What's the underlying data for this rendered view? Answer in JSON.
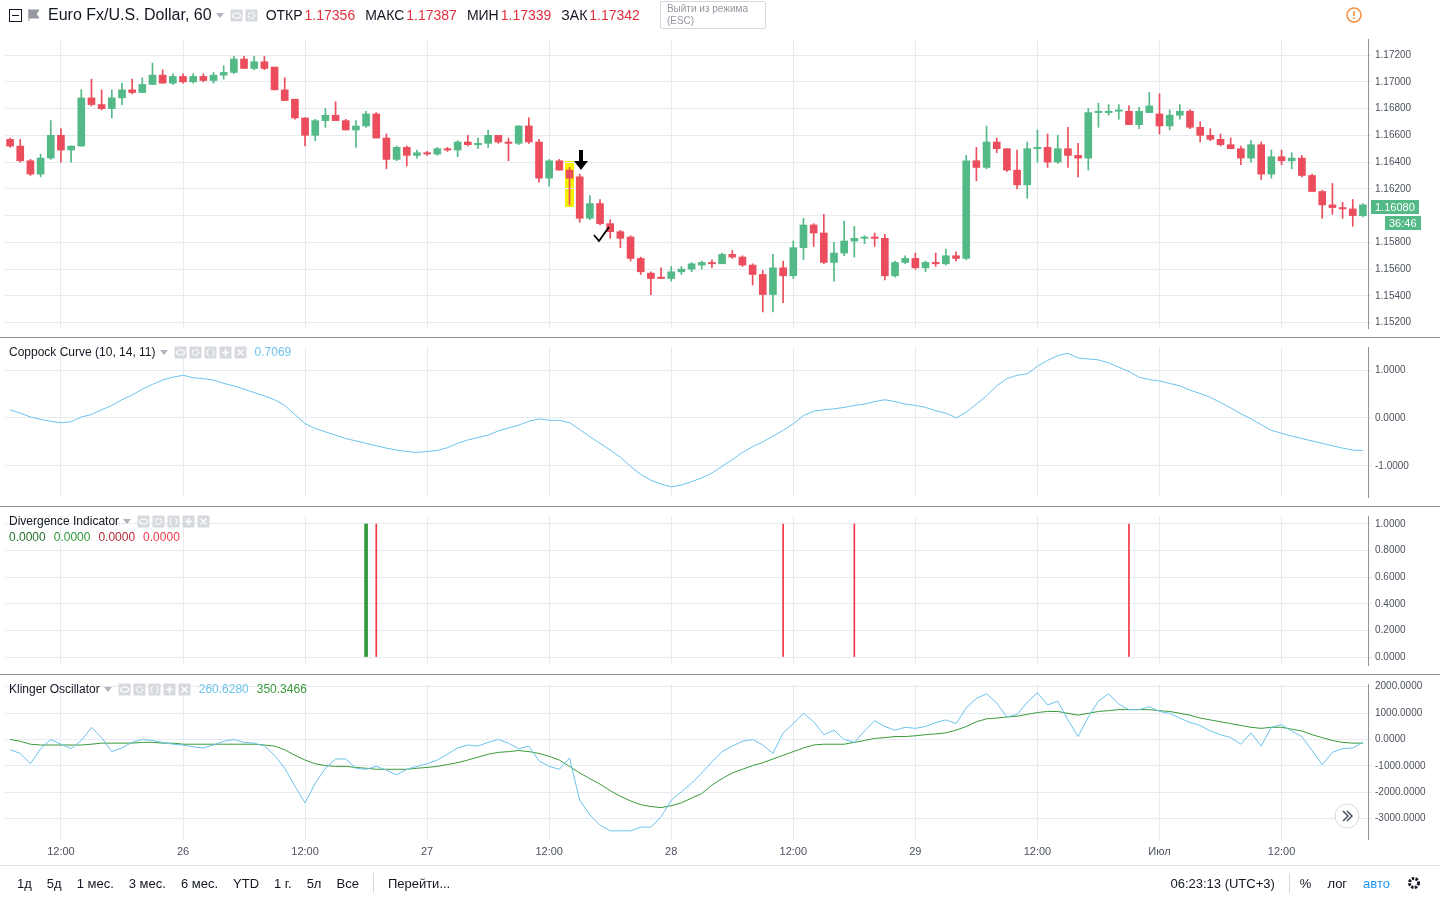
{
  "chart_data": [
    {
      "type": "candlestick",
      "title": "Euro Fx/U.S. Dollar, 60",
      "annotations": [
        "ОТКР",
        "1.17356",
        "МАКС",
        "1.17387",
        "МИН",
        "1.17339",
        "ЗАК",
        "1.17342",
        "Выйти из режима (ESC)",
        "1.16080",
        "36:46"
      ],
      "categories": [
        null,
        null,
        null,
        null,
        null,
        null,
        null,
        null,
        null,
        null,
        null,
        null,
        null,
        null,
        null,
        null,
        null,
        null,
        null,
        null,
        null,
        null,
        null,
        null,
        null,
        null,
        null,
        null,
        null,
        null,
        null,
        null,
        null,
        null,
        null,
        null,
        null,
        null,
        null,
        null,
        null,
        null,
        null,
        null,
        null,
        null,
        null,
        null,
        null,
        null,
        null,
        null,
        null,
        null,
        null,
        null,
        null,
        null,
        null,
        null,
        null,
        null,
        null,
        null,
        null,
        null,
        null,
        null,
        null,
        null,
        null,
        null,
        null,
        null,
        null,
        null,
        null,
        null,
        null,
        null,
        null,
        null,
        null,
        null,
        null,
        null,
        null,
        null,
        null,
        null,
        null,
        null,
        null,
        null,
        null,
        null,
        null,
        null,
        null,
        null,
        null,
        null,
        null,
        null,
        null,
        null,
        null,
        null,
        null,
        null,
        null,
        null,
        null,
        null,
        null,
        null,
        null,
        null,
        null,
        null,
        null,
        null,
        null,
        null,
        null,
        null,
        null,
        null,
        null,
        null,
        null,
        null,
        null,
        null
      ],
      "ohlc": [
        [
          1.1657,
          1.1658,
          1.1651,
          1.1652
        ],
        [
          1.1652,
          1.1657,
          1.164,
          1.1641
        ],
        [
          1.1641,
          1.1642,
          1.163,
          1.1631
        ],
        [
          1.1631,
          1.1646,
          1.1629,
          1.1643
        ],
        [
          1.1643,
          1.1671,
          1.1642,
          1.166
        ],
        [
          1.166,
          1.1665,
          1.164,
          1.1649
        ],
        [
          1.1649,
          1.1652,
          1.164,
          1.1652
        ],
        [
          1.1652,
          1.1694,
          1.1652,
          1.1688
        ],
        [
          1.1688,
          1.1702,
          1.1682,
          1.1683
        ],
        [
          1.1683,
          1.1694,
          1.1679,
          1.168
        ],
        [
          1.168,
          1.1694,
          1.1673,
          1.1688
        ],
        [
          1.1688,
          1.1699,
          1.1683,
          1.1694
        ],
        [
          1.1694,
          1.1702,
          1.1691,
          1.1692
        ],
        [
          1.1692,
          1.1703,
          1.1692,
          1.1698
        ],
        [
          1.1698,
          1.1714,
          1.1698,
          1.1705
        ],
        [
          1.1705,
          1.1709,
          1.1699,
          1.1699
        ],
        [
          1.1699,
          1.1706,
          1.1698,
          1.1704
        ],
        [
          1.1704,
          1.1706,
          1.1699,
          1.17
        ],
        [
          1.17,
          1.1706,
          1.1699,
          1.1704
        ],
        [
          1.1704,
          1.1706,
          1.17,
          1.1701
        ],
        [
          1.1701,
          1.1707,
          1.1699,
          1.1705
        ],
        [
          1.1705,
          1.1712,
          1.1702,
          1.1707
        ],
        [
          1.1707,
          1.1719,
          1.1706,
          1.1717
        ],
        [
          1.1717,
          1.1719,
          1.171,
          1.171
        ],
        [
          1.171,
          1.1719,
          1.1709,
          1.1715
        ],
        [
          1.1715,
          1.1719,
          1.1709,
          1.171
        ],
        [
          1.1711,
          1.1711,
          1.1694,
          1.1694
        ],
        [
          1.1694,
          1.1703,
          1.1686,
          1.1686
        ],
        [
          1.1687,
          1.1687,
          1.1672,
          1.1673
        ],
        [
          1.1673,
          1.1673,
          1.1652,
          1.166
        ],
        [
          1.166,
          1.1672,
          1.1656,
          1.1671
        ],
        [
          1.1671,
          1.168,
          1.1666,
          1.1675
        ],
        [
          1.1675,
          1.1685,
          1.1671,
          1.1671
        ],
        [
          1.1671,
          1.1672,
          1.1664,
          1.1664
        ],
        [
          1.1664,
          1.1671,
          1.1651,
          1.1667
        ],
        [
          1.1667,
          1.1678,
          1.1666,
          1.1676
        ],
        [
          1.1676,
          1.1677,
          1.1658,
          1.1658
        ],
        [
          1.1658,
          1.1661,
          1.1635,
          1.1642
        ],
        [
          1.1642,
          1.1652,
          1.1641,
          1.1651
        ],
        [
          1.1651,
          1.1652,
          1.1637,
          1.1645
        ],
        [
          1.1645,
          1.1649,
          1.1643,
          1.1647
        ],
        [
          1.1647,
          1.1648,
          1.1645,
          1.1646
        ],
        [
          1.1646,
          1.1651,
          1.1645,
          1.165
        ],
        [
          1.165,
          1.1651,
          1.1648,
          1.1649
        ],
        [
          1.1649,
          1.1656,
          1.1644,
          1.1655
        ],
        [
          1.1655,
          1.166,
          1.1652,
          1.1653
        ],
        [
          1.1653,
          1.1658,
          1.165,
          1.1654
        ],
        [
          1.1654,
          1.1664,
          1.1651,
          1.166
        ],
        [
          1.166,
          1.166,
          1.1654,
          1.1655
        ],
        [
          1.1655,
          1.1658,
          1.1641,
          1.1654
        ],
        [
          1.1654,
          1.1667,
          1.1653,
          1.1667
        ],
        [
          1.1667,
          1.1673,
          1.1654,
          1.1655
        ],
        [
          1.1655,
          1.1657,
          1.1625,
          1.1628
        ],
        [
          1.1628,
          1.1642,
          1.1622,
          1.1641
        ],
        [
          1.1641,
          1.1642,
          1.1634,
          1.1634
        ],
        [
          1.1634,
          1.1636,
          1.1608,
          1.1628
        ],
        [
          1.1629,
          1.1631,
          1.1595,
          1.1598
        ],
        [
          1.1598,
          1.1615,
          1.1597,
          1.1609
        ],
        [
          1.1609,
          1.1612,
          1.1593,
          1.1594
        ],
        [
          1.1594,
          1.1597,
          1.1583,
          1.1588
        ],
        [
          1.1588,
          1.1589,
          1.1576,
          1.1583
        ],
        [
          1.1584,
          1.1585,
          1.1566,
          1.1568
        ],
        [
          1.1568,
          1.1569,
          1.1556,
          1.1558
        ],
        [
          1.1557,
          1.1558,
          1.1541,
          1.1553
        ],
        [
          1.1554,
          1.1561,
          1.1553,
          1.1553
        ],
        [
          1.1553,
          1.1562,
          1.1551,
          1.1558
        ],
        [
          1.1558,
          1.1562,
          1.1556,
          1.156
        ],
        [
          1.156,
          1.1565,
          1.1558,
          1.1564
        ],
        [
          1.1563,
          1.1566,
          1.156,
          1.1565
        ],
        [
          1.1565,
          1.1567,
          1.1561,
          1.1564
        ],
        [
          1.1564,
          1.1572,
          1.1564,
          1.1571
        ],
        [
          1.1571,
          1.1574,
          1.1568,
          1.1569
        ],
        [
          1.1569,
          1.157,
          1.1562,
          1.1563
        ],
        [
          1.1563,
          1.1564,
          1.1548,
          1.1556
        ],
        [
          1.1556,
          1.1559,
          1.1528,
          1.1541
        ],
        [
          1.1541,
          1.1571,
          1.1528,
          1.1561
        ],
        [
          1.1561,
          1.1566,
          1.1535,
          1.1555
        ],
        [
          1.1555,
          1.1581,
          1.1553,
          1.1576
        ],
        [
          1.1576,
          1.1598,
          1.1567,
          1.1593
        ],
        [
          1.1593,
          1.1594,
          1.1577,
          1.1587
        ],
        [
          1.1587,
          1.1601,
          1.1564,
          1.1565
        ],
        [
          1.1565,
          1.158,
          1.1551,
          1.1572
        ],
        [
          1.1572,
          1.1596,
          1.157,
          1.1581
        ],
        [
          1.1581,
          1.1592,
          1.1569,
          1.1583
        ],
        [
          1.1583,
          1.1585,
          1.1579,
          1.1584
        ],
        [
          1.1584,
          1.1587,
          1.1577,
          1.1583
        ],
        [
          1.1583,
          1.1586,
          1.1552,
          1.1555
        ],
        [
          1.1555,
          1.1566,
          1.1554,
          1.1565
        ],
        [
          1.1565,
          1.157,
          1.1564,
          1.1568
        ],
        [
          1.1568,
          1.1572,
          1.156,
          1.1561
        ],
        [
          1.1561,
          1.1566,
          1.1558,
          1.1565
        ],
        [
          1.1565,
          1.1572,
          1.1562,
          1.1564
        ],
        [
          1.1564,
          1.1575,
          1.1563,
          1.157
        ],
        [
          1.157,
          1.1573,
          1.1566,
          1.1568
        ],
        [
          1.1568,
          1.1645,
          1.1567,
          1.1641
        ],
        [
          1.1641,
          1.1651,
          1.1626,
          1.1636
        ],
        [
          1.1636,
          1.1667,
          1.1635,
          1.1655
        ],
        [
          1.1655,
          1.1658,
          1.1647,
          1.165
        ],
        [
          1.165,
          1.165,
          1.1633,
          1.1634
        ],
        [
          1.1634,
          1.1649,
          1.162,
          1.1623
        ],
        [
          1.1623,
          1.1655,
          1.1613,
          1.165
        ],
        [
          1.165,
          1.1664,
          1.164,
          1.1651
        ],
        [
          1.1651,
          1.1661,
          1.1636,
          1.164
        ],
        [
          1.164,
          1.166,
          1.1639,
          1.165
        ],
        [
          1.165,
          1.1666,
          1.1636,
          1.1645
        ],
        [
          1.1645,
          1.1654,
          1.1629,
          1.1643
        ],
        [
          1.1643,
          1.168,
          1.1634,
          1.1677
        ],
        [
          1.1677,
          1.1684,
          1.1666,
          1.1678
        ],
        [
          1.1677,
          1.1683,
          1.1675,
          1.1678
        ],
        [
          1.1678,
          1.1683,
          1.1672,
          1.1679
        ],
        [
          1.1678,
          1.1682,
          1.1668,
          1.1668
        ],
        [
          1.1668,
          1.1681,
          1.1665,
          1.1678
        ],
        [
          1.1677,
          1.1692,
          1.1677,
          1.1682
        ],
        [
          1.1676,
          1.1691,
          1.1661,
          1.1667
        ],
        [
          1.1667,
          1.1679,
          1.1664,
          1.1675
        ],
        [
          1.1675,
          1.1683,
          1.1672,
          1.1678
        ],
        [
          1.1678,
          1.1679,
          1.1665,
          1.1666
        ],
        [
          1.1666,
          1.167,
          1.1655,
          1.166
        ],
        [
          1.166,
          1.1665,
          1.1656,
          1.1657
        ],
        [
          1.1657,
          1.1661,
          1.1652,
          1.1653
        ],
        [
          1.1653,
          1.1658,
          1.165,
          1.165
        ],
        [
          1.165,
          1.1652,
          1.1638,
          1.1643
        ],
        [
          1.1643,
          1.1656,
          1.164,
          1.1653
        ],
        [
          1.1653,
          1.1655,
          1.1627,
          1.1631
        ],
        [
          1.1631,
          1.1649,
          1.1628,
          1.1644
        ],
        [
          1.1644,
          1.1649,
          1.1638,
          1.1641
        ],
        [
          1.1641,
          1.1647,
          1.1635,
          1.1643
        ],
        [
          1.1643,
          1.1645,
          1.1629,
          1.163
        ],
        [
          1.163,
          1.1631,
          1.1618,
          1.1618
        ],
        [
          1.1618,
          1.1619,
          1.1598,
          1.1608
        ],
        [
          1.1608,
          1.1624,
          1.1601,
          1.1606
        ],
        [
          1.1606,
          1.161,
          1.1598,
          1.1605
        ],
        [
          1.1605,
          1.1612,
          1.1592,
          1.16
        ],
        [
          1.16,
          1.1609,
          1.1599,
          1.1608
        ]
      ],
      "ylim": [
        1.1516,
        1.1732
      ],
      "yticks": [
        {
          "value": 1.152,
          "label": "1.15200"
        },
        {
          "value": 1.154,
          "label": "1.15400"
        },
        {
          "value": 1.156,
          "label": "1.15600"
        },
        {
          "value": 1.158,
          "label": "1.15800"
        },
        {
          "value": 1.16,
          "label": null
        },
        {
          "value": 1.162,
          "label": "1.16200"
        },
        {
          "value": 1.164,
          "label": "1.16400"
        },
        {
          "value": 1.166,
          "label": "1.16600"
        },
        {
          "value": 1.168,
          "label": "1.16800"
        },
        {
          "value": 1.17,
          "label": "1.17000"
        },
        {
          "value": 1.172,
          "label": "1.17200"
        }
      ],
      "grid": true,
      "tick_labels": "y"
    },
    {
      "type": "line",
      "title": "Coppock Curve (10, 14, 11)",
      "annotations": [
        "0.7069"
      ],
      "categories": [
        null,
        null,
        null,
        null,
        null,
        null,
        null,
        null,
        null,
        null,
        null,
        null,
        null,
        null,
        null,
        null,
        null,
        null,
        null,
        null,
        null,
        null,
        null,
        null,
        null,
        null,
        null,
        null,
        null,
        null,
        null,
        null,
        null,
        null,
        null,
        null,
        null,
        null,
        null,
        null,
        null,
        null,
        null,
        null,
        null,
        null,
        null,
        null,
        null,
        null,
        null,
        null,
        null,
        null,
        null,
        null,
        null,
        null,
        null,
        null,
        null,
        null,
        null,
        null,
        null,
        null,
        null,
        null,
        null,
        null,
        null,
        null,
        null,
        null,
        null,
        null,
        null,
        null,
        null,
        null,
        null,
        null,
        null,
        null,
        null,
        null,
        null,
        null,
        null,
        null,
        null,
        null,
        null,
        null,
        null,
        null,
        null,
        null,
        null,
        null,
        null,
        null,
        null,
        null,
        null,
        null,
        null,
        null,
        null,
        null,
        null,
        null,
        null,
        null,
        null,
        null,
        null,
        null,
        null,
        null,
        null,
        null,
        null,
        null,
        null,
        null,
        null,
        null,
        null,
        null,
        null,
        null,
        null,
        null
      ],
      "series": [
        {
          "color": "#6cc3ec",
          "values": [
            0.17,
            0.1,
            0.02,
            -0.03,
            -0.07,
            -0.1,
            -0.08,
            0.02,
            0.07,
            0.17,
            0.26,
            0.38,
            0.48,
            0.6,
            0.7,
            0.79,
            0.85,
            0.89,
            0.84,
            0.82,
            0.79,
            0.72,
            0.67,
            0.6,
            0.53,
            0.46,
            0.38,
            0.26,
            0.07,
            -0.12,
            -0.22,
            -0.29,
            -0.36,
            -0.43,
            -0.48,
            -0.53,
            -0.58,
            -0.63,
            -0.67,
            -0.7,
            -0.72,
            -0.7,
            -0.68,
            -0.62,
            -0.53,
            -0.46,
            -0.41,
            -0.36,
            -0.27,
            -0.21,
            -0.15,
            -0.07,
            -0.02,
            -0.05,
            -0.05,
            -0.1,
            -0.24,
            -0.39,
            -0.53,
            -0.67,
            -0.82,
            -1.01,
            -1.18,
            -1.3,
            -1.38,
            -1.44,
            -1.4,
            -1.33,
            -1.25,
            -1.15,
            -1.01,
            -0.87,
            -0.72,
            -0.6,
            -0.5,
            -0.38,
            -0.26,
            -0.12,
            0.05,
            0.14,
            0.17,
            0.19,
            0.22,
            0.26,
            0.29,
            0.34,
            0.38,
            0.34,
            0.29,
            0.26,
            0.22,
            0.15,
            0.1,
            0.0,
            0.12,
            0.29,
            0.46,
            0.67,
            0.82,
            0.89,
            0.92,
            1.08,
            1.2,
            1.3,
            1.35,
            1.25,
            1.23,
            1.21,
            1.15,
            1.06,
            0.97,
            0.85,
            0.8,
            0.77,
            0.72,
            0.67,
            0.58,
            0.51,
            0.43,
            0.32,
            0.21,
            0.09,
            -0.02,
            -0.14,
            -0.26,
            -0.32,
            -0.38,
            -0.43,
            -0.48,
            -0.53,
            -0.58,
            -0.63,
            -0.67,
            -0.68
          ]
        }
      ],
      "ylim": [
        -1.65,
        1.48
      ],
      "yticks": [
        {
          "value": -1,
          "label": "-1.0000"
        },
        {
          "value": 0,
          "label": "0.0000"
        },
        {
          "value": 1,
          "label": "1.0000"
        }
      ],
      "grid": true,
      "tick_labels": "y"
    },
    {
      "type": "bar",
      "title": "Divergence Indicator",
      "annotations": [
        "0.0000",
        "0.0000",
        "0.0000",
        "0.0000"
      ],
      "categories": [
        null,
        null,
        null,
        null,
        null,
        null,
        null,
        null,
        null,
        null,
        null,
        null,
        null,
        null,
        null,
        null,
        null,
        null,
        null,
        null,
        null,
        null,
        null,
        null,
        null,
        null,
        null,
        null,
        null,
        null,
        null,
        null,
        null,
        null,
        null,
        null,
        null,
        null,
        null,
        null,
        null,
        null,
        null,
        null,
        null,
        null,
        null,
        null,
        null,
        null,
        null,
        null,
        null,
        null,
        null,
        null,
        null,
        null,
        null,
        null,
        null,
        null,
        null,
        null,
        null,
        null,
        null,
        null,
        null,
        null,
        null,
        null,
        null,
        null,
        null,
        null,
        null,
        null,
        null,
        null,
        null,
        null,
        null,
        null,
        null,
        null,
        null,
        null,
        null,
        null,
        null,
        null,
        null,
        null,
        null,
        null,
        null,
        null,
        null,
        null,
        null,
        null,
        null,
        null,
        null,
        null,
        null,
        null,
        null,
        null,
        null,
        null,
        null,
        null,
        null,
        null,
        null,
        null,
        null,
        null,
        null,
        null,
        null,
        null,
        null,
        null,
        null,
        null,
        null,
        null,
        null,
        null,
        null,
        null
      ],
      "series": [
        {
          "color": "#2f9a3a",
          "values": [
            null,
            null,
            null,
            null,
            null,
            null,
            null,
            null,
            null,
            null,
            null,
            null,
            null,
            null,
            null,
            null,
            null,
            null,
            null,
            null,
            null,
            null,
            null,
            null,
            null,
            null,
            null,
            null,
            null,
            null,
            null,
            null,
            null,
            null,
            null,
            1,
            null,
            null,
            null,
            null,
            null,
            null,
            null,
            null,
            null,
            null,
            null,
            null,
            null,
            null,
            null,
            null,
            null,
            null,
            null,
            null,
            null,
            null,
            null,
            null,
            null,
            null,
            null,
            null,
            null,
            null,
            null,
            null,
            null,
            null,
            null,
            null,
            null,
            null,
            null,
            null,
            null,
            null,
            null,
            null,
            null,
            null,
            null,
            null,
            null,
            null,
            null,
            null,
            null,
            null,
            null,
            null,
            null,
            null,
            null,
            null,
            null,
            null,
            null,
            null,
            null,
            null,
            null,
            null,
            null,
            null,
            null,
            null,
            null,
            null,
            null,
            null,
            null,
            null,
            null,
            null,
            null,
            null,
            null,
            null,
            null,
            null,
            null,
            null,
            null,
            null,
            null,
            null,
            null,
            null,
            null,
            null,
            null,
            null
          ]
        },
        {
          "color": "#f23645",
          "values": [
            null,
            null,
            null,
            null,
            null,
            null,
            null,
            null,
            null,
            null,
            null,
            null,
            null,
            null,
            null,
            null,
            null,
            null,
            null,
            null,
            null,
            null,
            null,
            null,
            null,
            null,
            null,
            null,
            null,
            null,
            null,
            null,
            null,
            null,
            null,
            null,
            1,
            null,
            null,
            null,
            null,
            null,
            null,
            null,
            null,
            null,
            null,
            null,
            null,
            null,
            null,
            null,
            null,
            null,
            null,
            null,
            null,
            null,
            null,
            null,
            null,
            null,
            null,
            null,
            null,
            null,
            null,
            null,
            null,
            null,
            null,
            null,
            null,
            null,
            null,
            null,
            1,
            null,
            null,
            null,
            null,
            null,
            null,
            1,
            null,
            null,
            null,
            null,
            null,
            null,
            null,
            null,
            null,
            null,
            null,
            null,
            null,
            null,
            null,
            null,
            null,
            null,
            null,
            null,
            null,
            null,
            null,
            null,
            null,
            null,
            1,
            null,
            null,
            null,
            null,
            null,
            null,
            null,
            null,
            null,
            null,
            null,
            null,
            null,
            null,
            null,
            null,
            null,
            null,
            null,
            null,
            null,
            null,
            null
          ]
        }
      ],
      "ylim": [
        -0.06,
        1.06
      ],
      "yticks": [
        {
          "value": 0,
          "label": "0.0000"
        },
        {
          "value": 0.2,
          "label": "0.2000"
        },
        {
          "value": 0.4,
          "label": "0.4000"
        },
        {
          "value": 0.6,
          "label": "0.6000"
        },
        {
          "value": 0.8,
          "label": "0.8000"
        },
        {
          "value": 1,
          "label": "1.0000"
        }
      ],
      "grid": true,
      "tick_labels": "y"
    },
    {
      "type": "line",
      "title": "Klinger Oscillator",
      "annotations": [
        "260.6280",
        "350.3466",
        "1д",
        "5д",
        "1 мес.",
        "3 мес.",
        "6 мес.",
        "YTD",
        "1 г.",
        "5л",
        "Все",
        "Перейти...",
        "06:23:13 (UTC+3)",
        "%",
        "лог",
        "авто"
      ],
      "categories": [
        null,
        null,
        null,
        null,
        null,
        "12:00",
        null,
        null,
        null,
        null,
        null,
        null,
        null,
        null,
        null,
        null,
        null,
        "26",
        null,
        null,
        null,
        null,
        null,
        null,
        null,
        null,
        null,
        null,
        null,
        "12:00",
        null,
        null,
        null,
        null,
        null,
        null,
        null,
        null,
        null,
        null,
        null,
        "27",
        null,
        null,
        null,
        null,
        null,
        null,
        null,
        null,
        null,
        null,
        null,
        "12:00",
        null,
        null,
        null,
        null,
        null,
        null,
        null,
        null,
        null,
        null,
        null,
        "28",
        null,
        null,
        null,
        null,
        null,
        null,
        null,
        null,
        null,
        null,
        null,
        "12:00",
        null,
        null,
        null,
        null,
        null,
        null,
        null,
        null,
        null,
        null,
        null,
        "29",
        null,
        null,
        null,
        null,
        null,
        null,
        null,
        null,
        null,
        null,
        null,
        "12:00",
        null,
        null,
        null,
        null,
        null,
        null,
        null,
        null,
        null,
        null,
        null,
        "Июл",
        null,
        null,
        null,
        null,
        null,
        null,
        null,
        null,
        null,
        null,
        null,
        "12:00",
        null,
        null,
        null,
        null,
        null,
        null,
        null,
        null
      ],
      "series": [
        {
          "color": "#6cc3ec",
          "values": [
            -390,
            -530,
            -920,
            -350,
            0,
            -180,
            -350,
            -40,
            460,
            70,
            -460,
            -320,
            -110,
            0,
            -40,
            -110,
            -180,
            -210,
            -280,
            -320,
            -210,
            -70,
            0,
            -110,
            -140,
            -250,
            -600,
            -1090,
            -1770,
            -2400,
            -1660,
            -1090,
            -740,
            -740,
            -1090,
            -1130,
            -1020,
            -1160,
            -1340,
            -1130,
            -1020,
            -920,
            -780,
            -560,
            -320,
            -210,
            -250,
            -110,
            0,
            -140,
            -350,
            -250,
            -810,
            -1020,
            -1130,
            -700,
            -2300,
            -2860,
            -3250,
            -3460,
            -3460,
            -3460,
            -3320,
            -3320,
            -2930,
            -2300,
            -1980,
            -1660,
            -1270,
            -850,
            -460,
            -250,
            -70,
            0,
            -210,
            -530,
            250,
            600,
            990,
            670,
            180,
            350,
            0,
            -110,
            320,
            710,
            490,
            350,
            460,
            420,
            490,
            640,
            740,
            600,
            1200,
            1550,
            1730,
            1380,
            850,
            950,
            1410,
            1770,
            1310,
            1450,
            740,
            110,
            850,
            1450,
            1730,
            1340,
            1130,
            1130,
            1240,
            1060,
            990,
            810,
            640,
            530,
            320,
            180,
            70,
            -180,
            250,
            -250,
            460,
            560,
            320,
            110,
            -420,
            -950,
            -490,
            -350,
            -320,
            -110
          ]
        },
        {
          "color": "#3a9a3a",
          "values": [
            0,
            -70,
            -180,
            -210,
            -210,
            -210,
            -210,
            -210,
            -180,
            -140,
            -140,
            -140,
            -140,
            -110,
            -110,
            -140,
            -140,
            -180,
            -180,
            -180,
            -180,
            -180,
            -180,
            -180,
            -180,
            -210,
            -250,
            -390,
            -600,
            -780,
            -920,
            -990,
            -1020,
            -1020,
            -1060,
            -1090,
            -1130,
            -1130,
            -1130,
            -1130,
            -1090,
            -1060,
            -1020,
            -950,
            -880,
            -780,
            -670,
            -560,
            -490,
            -460,
            -420,
            -460,
            -530,
            -640,
            -780,
            -1020,
            -1270,
            -1480,
            -1690,
            -1940,
            -2150,
            -2330,
            -2470,
            -2540,
            -2580,
            -2510,
            -2400,
            -2220,
            -2050,
            -1730,
            -1480,
            -1270,
            -1130,
            -990,
            -880,
            -740,
            -600,
            -460,
            -320,
            -210,
            -180,
            -180,
            -180,
            -110,
            -40,
            40,
            70,
            110,
            110,
            140,
            180,
            210,
            250,
            350,
            490,
            670,
            780,
            810,
            850,
            880,
            950,
            1020,
            1060,
            1060,
            990,
            920,
            990,
            1060,
            1090,
            1130,
            1130,
            1130,
            1130,
            1090,
            1060,
            990,
            920,
            810,
            740,
            670,
            600,
            530,
            460,
            420,
            460,
            460,
            390,
            320,
            180,
            70,
            -40,
            -110,
            -140,
            -140
          ]
        }
      ],
      "ylim": [
        -3800,
        2100
      ],
      "yticks": [
        {
          "value": -3000,
          "label": "-3000.0000"
        },
        {
          "value": -2000,
          "label": "-2000.0000"
        },
        {
          "value": -1000,
          "label": "-1000.0000"
        },
        {
          "value": 0,
          "label": "0.0000"
        },
        {
          "value": 1000,
          "label": "1000.0000"
        },
        {
          "value": 2000,
          "label": "2000.0000"
        }
      ],
      "grid": true
    }
  ]
}
